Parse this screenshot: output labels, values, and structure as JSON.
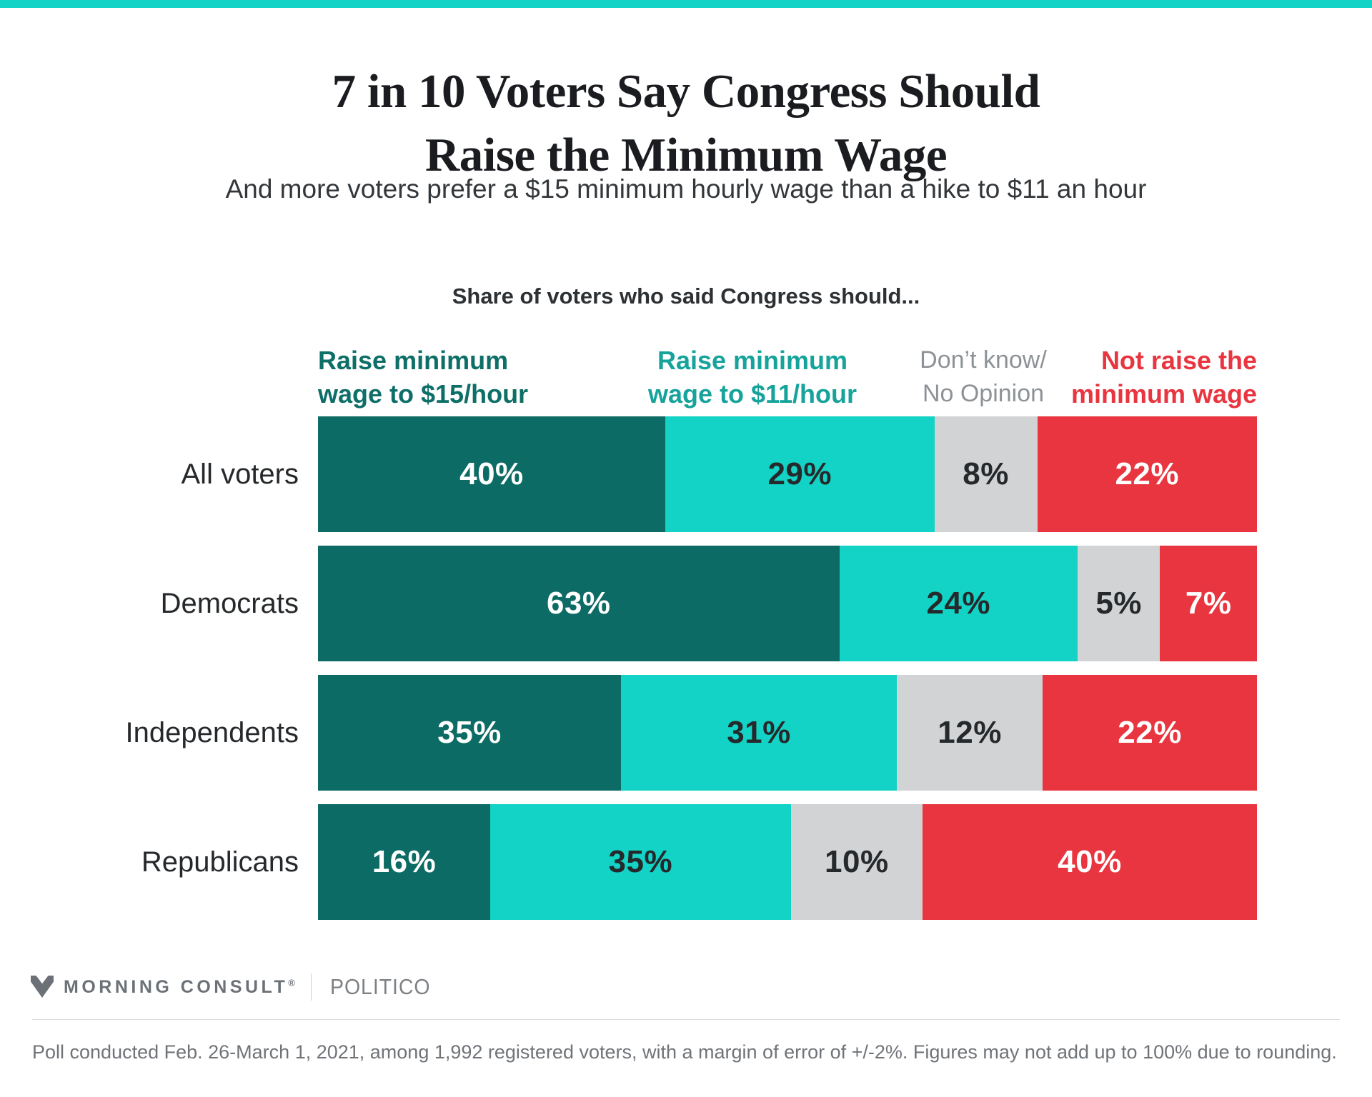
{
  "page": {
    "background": "#ffffff",
    "top_strip_color": "#12d3c5"
  },
  "header": {
    "title_line1": "7 in 10 Voters Say Congress Should",
    "title_line2": "Raise the Minimum Wage",
    "subtitle": "And more voters prefer a $15 minimum hourly wage than a hike to $11 an hour"
  },
  "chart_data": {
    "type": "bar",
    "stacked": true,
    "orientation": "horizontal",
    "heading": "Share of voters who said Congress should...",
    "categories": [
      "All voters",
      "Democrats",
      "Independents",
      "Republicans"
    ],
    "series": [
      {
        "name": "Raise minimum wage to $15/hour",
        "legend_lines": [
          "Raise minimum",
          "wage to $15/hour"
        ],
        "color": "#0c6b64",
        "text_color": "#ffffff",
        "legend_color": "#0d6f67",
        "values": [
          40,
          63,
          35,
          16
        ]
      },
      {
        "name": "Raise minimum wage to $11/hour",
        "legend_lines": [
          "Raise minimum",
          "wage to $11/hour"
        ],
        "color": "#12d3c5",
        "text_color": "#26292b",
        "legend_color": "#16a39b",
        "values": [
          29,
          24,
          31,
          35
        ]
      },
      {
        "name": "Don’t know/ No Opinion",
        "legend_lines": [
          "Don’t know/",
          "No Opinion"
        ],
        "color": "#d2d3d4",
        "text_color": "#26292b",
        "legend_color": "#8d9296",
        "values": [
          8,
          5,
          12,
          10
        ]
      },
      {
        "name": "Not raise the minimum wage",
        "legend_lines": [
          "Not raise the",
          "minimum wage"
        ],
        "color": "#e8353f",
        "text_color": "#ffffff",
        "legend_color": "#e8353f",
        "values": [
          22,
          7,
          22,
          40
        ]
      }
    ],
    "value_suffix": "%",
    "xlim": [
      0,
      100
    ],
    "grid": false,
    "legend_position": "top"
  },
  "footer": {
    "brand1": "MORNING CONSULT",
    "brand1_reg": "®",
    "brand2": "POLITICO",
    "note": "Poll conducted Feb. 26-March 1, 2021, among 1,992 registered voters, with a margin of error of +/-2%. Figures may not add up to 100% due to rounding."
  }
}
